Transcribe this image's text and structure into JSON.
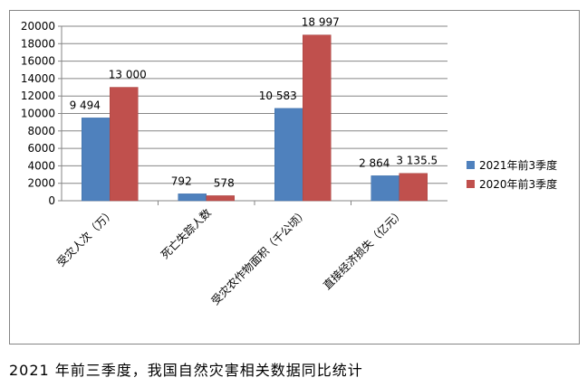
{
  "chart_data": {
    "type": "bar",
    "categories": [
      "受灾人次（万）",
      "死亡失踪人数",
      "受灾农作物面积（千公顷）",
      "直接经济损失（亿元）"
    ],
    "series": [
      {
        "name": "2021年前3季度",
        "values": [
          9494,
          792,
          10583,
          2864
        ],
        "labels": [
          "9 494",
          "792",
          "10 583",
          "2 864"
        ],
        "color": "#4f81bd"
      },
      {
        "name": "2020年前3季度",
        "values": [
          13000,
          578,
          18997,
          3135.5
        ],
        "labels": [
          "13 000",
          "578",
          "18 997",
          "3 135.5"
        ],
        "color": "#c0504d"
      }
    ],
    "y_ticks": [
      "0",
      "2000",
      "4000",
      "6000",
      "8000",
      "10000",
      "12000",
      "14000",
      "16000",
      "18000",
      "20000"
    ],
    "ylim": [
      0,
      20000
    ],
    "grid": true,
    "legend_position": "right"
  },
  "caption": "2021 年前三季度，我国自然灾害相关数据同比统计"
}
